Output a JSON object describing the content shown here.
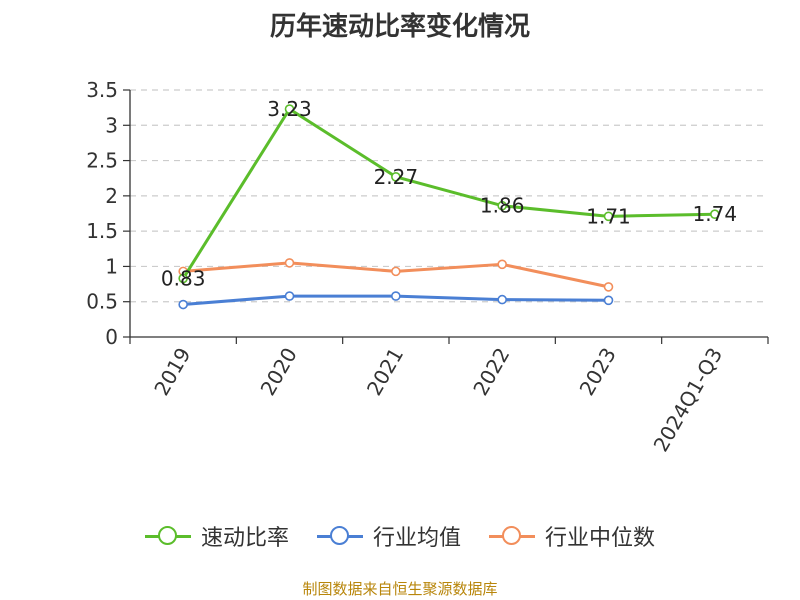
{
  "chart_data": {
    "type": "line",
    "title": "历年速动比率变化情况",
    "categories": [
      "2019",
      "2020",
      "2021",
      "2022",
      "2023",
      "2024Q1-Q3"
    ],
    "ylim": [
      0,
      3.5
    ],
    "yticks": [
      "0",
      "0.5",
      "1",
      "1.5",
      "2",
      "2.5",
      "3",
      "3.5"
    ],
    "grid": true,
    "legend_position": "bottom",
    "series": [
      {
        "name": "速动比率",
        "color": "#5bbd2b",
        "values": [
          0.83,
          3.23,
          2.27,
          1.86,
          1.71,
          1.74
        ],
        "labels": [
          "0.83",
          "3.23",
          "2.27",
          "1.86",
          "1.71",
          "1.74"
        ]
      },
      {
        "name": "行业均值",
        "color": "#4a7fd4",
        "values": [
          0.46,
          0.58,
          0.58,
          0.53,
          0.52,
          null
        ]
      },
      {
        "name": "行业中位数",
        "color": "#f28e5b",
        "values": [
          0.93,
          1.05,
          0.93,
          1.03,
          0.71,
          null
        ]
      }
    ]
  },
  "source": "制图数据来自恒生聚源数据库"
}
